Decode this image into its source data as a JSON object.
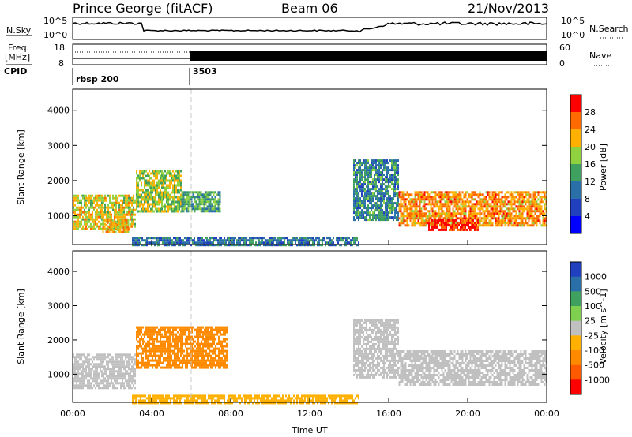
{
  "header": {
    "station": "Prince George (fitACF)",
    "beam": "Beam 06",
    "date": "21/Nov/2013"
  },
  "panels": {
    "nsky_label": "N.Sky",
    "nsearch_label": "N.Search",
    "nsky_ticks": [
      "10^5",
      "10^0"
    ],
    "nsearch_ticks": [
      "10^5",
      "10^0"
    ],
    "freq_label_top": "Freq.",
    "freq_label_bottom": "[MHz]",
    "freq_ticks": [
      "18",
      "8"
    ],
    "nave_label": "Nave",
    "nave_ticks": [
      "60",
      "0"
    ],
    "cpid_label": "CPID",
    "cpid_segments": [
      {
        "label": "rbsp 200",
        "start_hour": 0.0
      },
      {
        "label": "3503",
        "start_hour": 6.0
      }
    ]
  },
  "power_panel": {
    "ylabel": "Slant Range [km]",
    "colorbar_label": "Power [dB]",
    "colorbar_ticks": [
      "28",
      "24",
      "20",
      "16",
      "12",
      "8",
      "4"
    ],
    "colorbar_colors": [
      "#ff0000",
      "#ff6a00",
      "#ffb000",
      "#8fd13f",
      "#3fa060",
      "#2a6fa8",
      "#2040c0",
      "#0000ff"
    ]
  },
  "velocity_panel": {
    "ylabel": "Slant Range [km]",
    "colorbar_label": "Velocity [m s^-1]",
    "colorbar_ticks": [
      "1000",
      "500",
      "100",
      "25",
      "-25",
      "-100",
      "-500",
      "-1000"
    ],
    "colorbar_colors": [
      "#2040c0",
      "#2a6fa8",
      "#3fa060",
      "#7fd04f",
      "#c0c0c0",
      "#ffb000",
      "#ff8a00",
      "#ff5a00",
      "#ff0000"
    ]
  },
  "axes": {
    "xlabel": "Time UT",
    "xticks": [
      "00:00",
      "04:00",
      "08:00",
      "12:00",
      "16:00",
      "20:00",
      "00:00"
    ],
    "ytick_labels": [
      "4000",
      "3000",
      "2000",
      "1000"
    ]
  },
  "chart_data": [
    {
      "type": "heatmap",
      "name": "power",
      "xlabel": "Time UT",
      "ylabel": "Slant Range [km]",
      "xlim_hours": [
        0,
        24
      ],
      "ylim_km": [
        180,
        4600
      ],
      "colorbar": "Power [dB]",
      "regions": [
        {
          "t": [
            0.0,
            3.2
          ],
          "r": [
            600,
            1600
          ],
          "value_db": 18
        },
        {
          "t": [
            1.5,
            2.8
          ],
          "r": [
            550,
            900
          ],
          "value_db": 20
        },
        {
          "t": [
            3.2,
            5.5
          ],
          "r": [
            1100,
            2300
          ],
          "value_db": 16
        },
        {
          "t": [
            5.5,
            7.5
          ],
          "r": [
            1100,
            1700
          ],
          "value_db": 12
        },
        {
          "t": [
            14.2,
            16.5
          ],
          "r": [
            900,
            2600
          ],
          "value_db": 10
        },
        {
          "t": [
            16.5,
            24.0
          ],
          "r": [
            700,
            1700
          ],
          "value_db": 22
        },
        {
          "t": [
            18.0,
            20.5
          ],
          "r": [
            600,
            900
          ],
          "value_db": 28
        },
        {
          "t": [
            3.0,
            14.5
          ],
          "r": [
            180,
            400
          ],
          "value_db": 8
        }
      ]
    },
    {
      "type": "heatmap",
      "name": "velocity",
      "xlabel": "Time UT",
      "ylabel": "Slant Range [km]",
      "xlim_hours": [
        0,
        24
      ],
      "ylim_km": [
        180,
        4600
      ],
      "colorbar": "Velocity [m s^-1]",
      "regions": [
        {
          "t": [
            0.0,
            3.2
          ],
          "r": [
            600,
            1600
          ],
          "value_ms": 0
        },
        {
          "t": [
            3.2,
            7.8
          ],
          "r": [
            1200,
            2400
          ],
          "value_ms": -300
        },
        {
          "t": [
            14.2,
            16.5
          ],
          "r": [
            900,
            2600
          ],
          "value_ms": 0
        },
        {
          "t": [
            16.5,
            24.0
          ],
          "r": [
            700,
            1700
          ],
          "value_ms": 0
        },
        {
          "t": [
            3.0,
            14.5
          ],
          "r": [
            180,
            400
          ],
          "value_ms": -50
        }
      ]
    }
  ]
}
